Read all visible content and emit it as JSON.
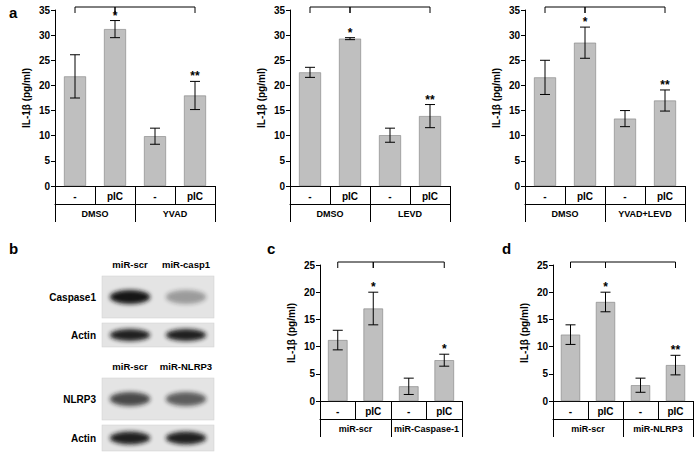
{
  "chart_data": [
    {
      "type": "bar",
      "panel": "a",
      "ylabel": "IL-1β (pg/ml)",
      "categories": [
        "-",
        "pIC",
        "-",
        "pIC"
      ],
      "groups": [
        "DMSO",
        "YVAD"
      ],
      "values": [
        21.8,
        31.2,
        9.9,
        18.0
      ],
      "errors": [
        4.3,
        1.7,
        1.6,
        2.8
      ],
      "annotations": [
        {
          "index": 1,
          "text": "*"
        },
        {
          "index": 3,
          "text": "**"
        }
      ],
      "comparisons": [
        [
          0,
          1
        ],
        [
          1,
          3
        ]
      ],
      "color": "#bfbfbf",
      "ylim": [
        0,
        35
      ],
      "yticks": [
        0,
        5,
        10,
        15,
        20,
        25,
        30,
        35
      ],
      "grid": false
    },
    {
      "type": "bar",
      "ylabel": "IL-1β (pg/ml)",
      "categories": [
        "-",
        "pIC",
        "-",
        "pIC"
      ],
      "groups": [
        "DMSO",
        "LEVD"
      ],
      "values": [
        22.6,
        29.3,
        10.1,
        13.9
      ],
      "errors": [
        1.0,
        0.2,
        1.4,
        2.3
      ],
      "annotations": [
        {
          "index": 1,
          "text": "*"
        },
        {
          "index": 3,
          "text": "**"
        }
      ],
      "comparisons": [
        [
          0,
          1
        ],
        [
          1,
          3
        ]
      ],
      "color": "#bfbfbf",
      "ylim": [
        0,
        35
      ],
      "yticks": [
        0,
        5,
        10,
        15,
        20,
        25,
        30,
        35
      ],
      "grid": false
    },
    {
      "type": "bar",
      "ylabel": "IL-1β (pg/ml)",
      "categories": [
        "-",
        "pIC",
        "-",
        "pIC"
      ],
      "groups": [
        "DMSO",
        "YVAD+LEVD"
      ],
      "values": [
        21.6,
        28.5,
        13.4,
        17.0
      ],
      "errors": [
        3.4,
        3.1,
        1.6,
        2.1
      ],
      "annotations": [
        {
          "index": 1,
          "text": "*"
        },
        {
          "index": 3,
          "text": "**"
        }
      ],
      "comparisons": [
        [
          0,
          1
        ],
        [
          1,
          3
        ]
      ],
      "color": "#bfbfbf",
      "ylim": [
        0,
        35
      ],
      "yticks": [
        0,
        5,
        10,
        15,
        20,
        25,
        30,
        35
      ],
      "grid": false
    },
    {
      "type": "bar",
      "panel": "c",
      "ylabel": "IL-1β (pg/ml)",
      "categories": [
        "-",
        "pIC",
        "-",
        "pIC"
      ],
      "groups": [
        "miR-scr",
        "miR-Caspase-1"
      ],
      "values": [
        11.2,
        17.0,
        2.7,
        7.5
      ],
      "errors": [
        1.8,
        3.0,
        1.5,
        1.1
      ],
      "annotations": [
        {
          "index": 1,
          "text": "*"
        },
        {
          "index": 3,
          "text": "*"
        }
      ],
      "comparisons": [
        [
          0,
          1
        ],
        [
          1,
          3
        ]
      ],
      "color": "#bfbfbf",
      "ylim": [
        0,
        25
      ],
      "yticks": [
        0,
        5,
        10,
        15,
        20,
        25
      ],
      "grid": false
    },
    {
      "type": "bar",
      "panel": "d",
      "ylabel": "IL-1β (pg/ml)",
      "categories": [
        "-",
        "pIC",
        "-",
        "pIC"
      ],
      "groups": [
        "miR-scr",
        "miR-NLRP3"
      ],
      "values": [
        12.2,
        18.2,
        2.9,
        6.6
      ],
      "errors": [
        1.8,
        1.8,
        1.3,
        1.8
      ],
      "annotations": [
        {
          "index": 1,
          "text": "*"
        },
        {
          "index": 3,
          "text": "**"
        }
      ],
      "comparisons": [
        [
          0,
          1
        ],
        [
          1,
          3
        ]
      ],
      "color": "#bfbfbf",
      "ylim": [
        0,
        25
      ],
      "yticks": [
        0,
        5,
        10,
        15,
        20,
        25
      ],
      "grid": false
    }
  ],
  "blot": {
    "panel": "b",
    "blocks": [
      {
        "lanes": [
          "miR-scr",
          "miR-casp1"
        ],
        "rows": [
          "Caspase1",
          "Actin"
        ]
      },
      {
        "lanes": [
          "miR-scr",
          "miR-NLRP3"
        ],
        "rows": [
          "NLRP3",
          "Actin"
        ]
      }
    ]
  }
}
